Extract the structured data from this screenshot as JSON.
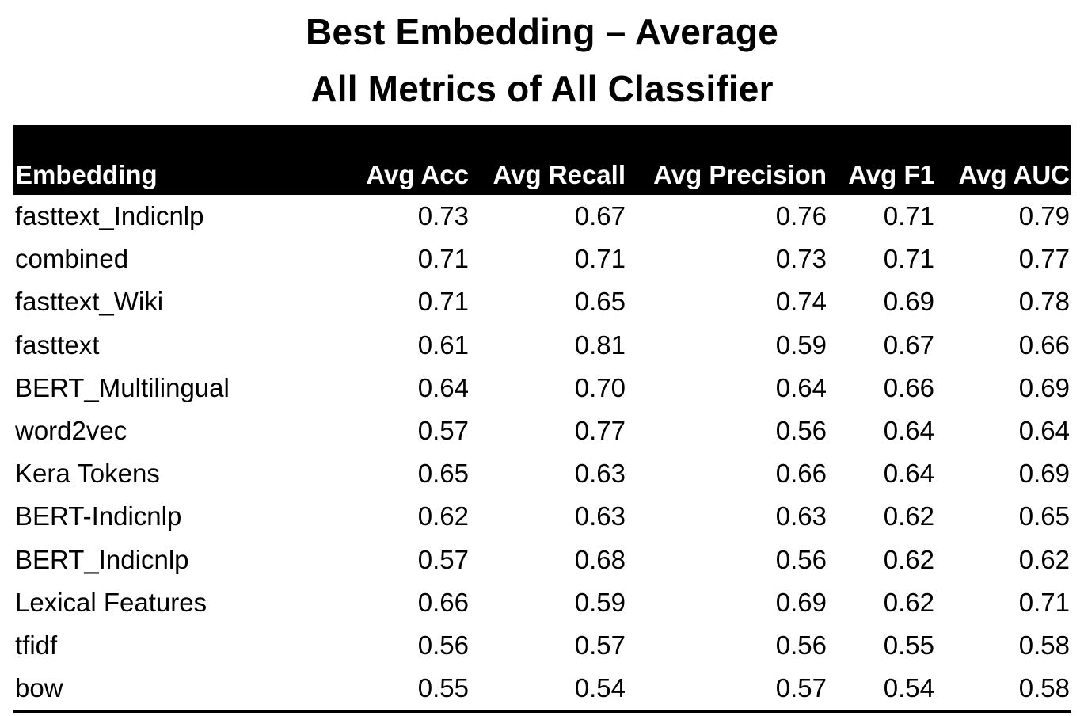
{
  "chart_data": {
    "type": "table",
    "title": "Best Embedding – Average",
    "subtitle": "All Metrics of All Classifier",
    "columns": [
      "Embedding",
      "Avg Acc",
      "Avg Recall",
      "Avg Precision",
      "Avg F1",
      "Avg AUC"
    ],
    "rows": [
      [
        "fasttext_Indicnlp",
        "0.73",
        "0.67",
        "0.76",
        "0.71",
        "0.79"
      ],
      [
        "combined",
        "0.71",
        "0.71",
        "0.73",
        "0.71",
        "0.77"
      ],
      [
        "fasttext_Wiki",
        "0.71",
        "0.65",
        "0.74",
        "0.69",
        "0.78"
      ],
      [
        "fasttext",
        "0.61",
        "0.81",
        "0.59",
        "0.67",
        "0.66"
      ],
      [
        "BERT_Multilingual",
        "0.64",
        "0.70",
        "0.64",
        "0.66",
        "0.69"
      ],
      [
        "word2vec",
        "0.57",
        "0.77",
        "0.56",
        "0.64",
        "0.64"
      ],
      [
        "Kera Tokens",
        "0.65",
        "0.63",
        "0.66",
        "0.64",
        "0.69"
      ],
      [
        "BERT-Indicnlp",
        "0.62",
        "0.63",
        "0.63",
        "0.62",
        "0.65"
      ],
      [
        "BERT_Indicnlp",
        "0.57",
        "0.68",
        "0.56",
        "0.62",
        "0.62"
      ],
      [
        "Lexical Features",
        "0.66",
        "0.59",
        "0.69",
        "0.62",
        "0.71"
      ],
      [
        "tfidf",
        "0.56",
        "0.57",
        "0.56",
        "0.55",
        "0.58"
      ],
      [
        "bow",
        "0.55",
        "0.54",
        "0.57",
        "0.54",
        "0.58"
      ]
    ]
  }
}
